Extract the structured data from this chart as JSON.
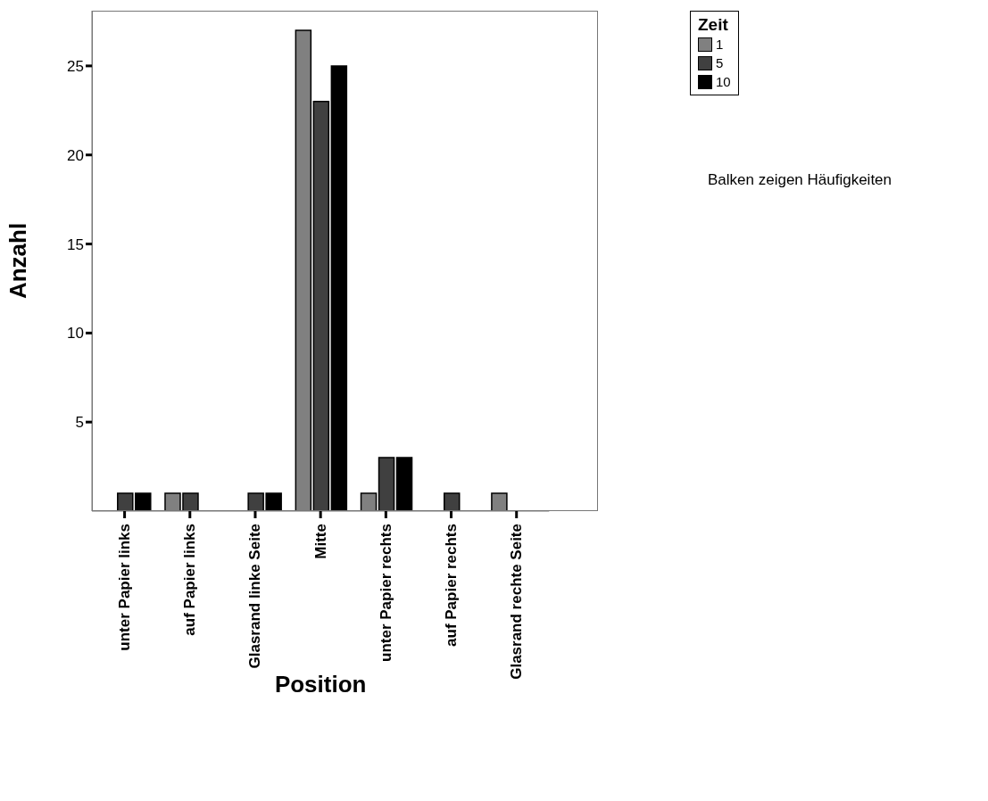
{
  "chart_data": {
    "type": "bar",
    "xlabel": "Position",
    "ylabel": "Anzahl",
    "legend_title": "Zeit",
    "categories": [
      "unter Papier links",
      "auf Papier links",
      "Glasrand linke Seite",
      "Mitte",
      "unter Papier rechts",
      "auf Papier rechts",
      "Glasrand rechte Seite"
    ],
    "series": [
      {
        "name": "1",
        "color": "#808080",
        "values": [
          null,
          1,
          null,
          27,
          1,
          null,
          1
        ]
      },
      {
        "name": "5",
        "color": "#404040",
        "values": [
          1,
          1,
          1,
          23,
          3,
          1,
          null
        ]
      },
      {
        "name": "10",
        "color": "#000000",
        "values": [
          1,
          null,
          1,
          25,
          3,
          null,
          null
        ]
      }
    ],
    "ylim": [
      0,
      28.1
    ],
    "yticks": [
      5,
      10,
      15,
      20,
      25
    ],
    "grid": false,
    "legend": "top right",
    "annotations": [
      "Balken zeigen Häufigkeiten"
    ]
  }
}
